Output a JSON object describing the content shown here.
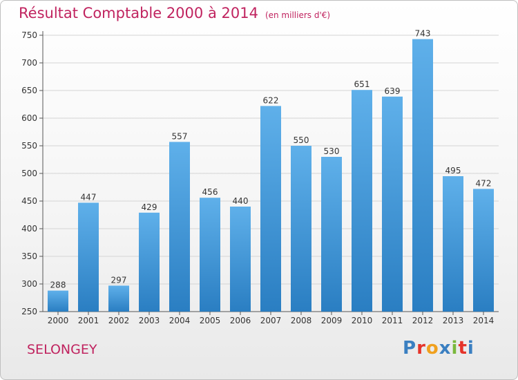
{
  "title": {
    "main": "Résultat Comptable 2000 à 2014",
    "subtitle": "(en milliers d'€)"
  },
  "location": "SELONGEY",
  "logo": {
    "text": "Proxiti",
    "letter_colors": [
      "#3a7fc1",
      "#e5332a",
      "#f0a01e",
      "#3a7fc1",
      "#7ab83c",
      "#e5332a",
      "#3a7fc1"
    ]
  },
  "colors": {
    "title": "#c0235f",
    "bar_top": "#5fb0ea",
    "bar_bottom": "#2a7ec2",
    "grid": "#d4d4d4",
    "text": "#333333"
  },
  "chart_data": {
    "type": "bar",
    "categories": [
      "2000",
      "2001",
      "2002",
      "2003",
      "2004",
      "2005",
      "2006",
      "2007",
      "2008",
      "2009",
      "2010",
      "2011",
      "2012",
      "2013",
      "2014"
    ],
    "values": [
      288,
      447,
      297,
      429,
      557,
      456,
      440,
      622,
      550,
      530,
      651,
      639,
      743,
      495,
      472
    ],
    "data_labels": [
      "288",
      "447",
      "297",
      "429",
      "557",
      "456",
      "440",
      "622",
      "550",
      "530",
      "651",
      "639",
      "743",
      "495",
      "472"
    ],
    "y_ticks": [
      250,
      300,
      350,
      400,
      450,
      500,
      550,
      600,
      650,
      700,
      750
    ],
    "ylim": [
      250,
      750
    ],
    "grid": true,
    "legend": "none"
  }
}
